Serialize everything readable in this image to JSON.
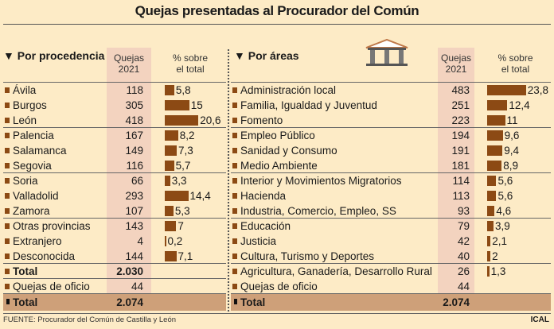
{
  "title": "Quejas presentadas al Procurador del Común",
  "source": "FUENTE: Procurador del Común de Castilla y León",
  "credit": "ICAL",
  "colors": {
    "background": "#fdebc6",
    "bar": "#8c4a14",
    "shade": "#f3d3bf",
    "total_row": "#cea079"
  },
  "chart_data": [
    {
      "type": "table",
      "title": "Por procedencia",
      "columns": [
        "Quejas 2021",
        "% sobre el total"
      ],
      "categories": [
        "Ávila",
        "Burgos",
        "León",
        "Palencia",
        "Salamanca",
        "Segovia",
        "Soria",
        "Valladolid",
        "Zamora",
        "Otras provincias",
        "Extranjero",
        "Desconocida"
      ],
      "values": [
        118,
        305,
        418,
        167,
        149,
        116,
        66,
        293,
        107,
        143,
        4,
        144
      ],
      "percent": [
        "5,8",
        "15",
        "20,6",
        "8,2",
        "7,3",
        "5,7",
        "3,3",
        "14,4",
        "5,3",
        "7",
        "0,2",
        "7,1"
      ],
      "percent_values": [
        5.8,
        15,
        20.6,
        8.2,
        7.3,
        5.7,
        3.3,
        14.4,
        5.3,
        7,
        0.2,
        7.1
      ],
      "subtotal": {
        "label": "Total",
        "value": "2.030"
      },
      "oficio": {
        "label": "Quejas de oficio",
        "value": "44"
      },
      "total": {
        "label": "Total",
        "value": "2.074"
      }
    },
    {
      "type": "table",
      "title": "Por áreas",
      "columns": [
        "Quejas 2021",
        "% sobre el total"
      ],
      "categories": [
        "Administración local",
        "Familia, Igualdad y Juventud",
        "Fomento",
        "Empleo Público",
        "Sanidad y Consumo",
        "Medio Ambiente",
        "Interior y Movimientos Migratorios",
        "Hacienda",
        "Industria, Comercio, Empleo, SS",
        "Educación",
        "Justicia",
        "Cultura, Turismo y Deportes",
        "Agricultura, Ganadería, Desarrollo Rural"
      ],
      "values": [
        483,
        251,
        223,
        194,
        191,
        181,
        114,
        113,
        93,
        79,
        42,
        40,
        26
      ],
      "percent": [
        "23,8",
        "12,4",
        "11",
        "9,6",
        "9,4",
        "8,9",
        "5,6",
        "5,6",
        "4,6",
        "3,9",
        "2,1",
        "2",
        "1,3"
      ],
      "percent_values": [
        23.8,
        12.4,
        11,
        9.6,
        9.4,
        8.9,
        5.6,
        5.6,
        4.6,
        3.9,
        2.1,
        2,
        1.3
      ],
      "oficio": {
        "label": "Quejas de oficio",
        "value": "44"
      },
      "total": {
        "label": "Total",
        "value": "2.074"
      }
    }
  ],
  "headers": {
    "quejas": "Quejas\n2021",
    "pct": "% sobre\nel total",
    "left_title": "▼ Por procedencia",
    "right_title": "▼ Por áreas"
  }
}
